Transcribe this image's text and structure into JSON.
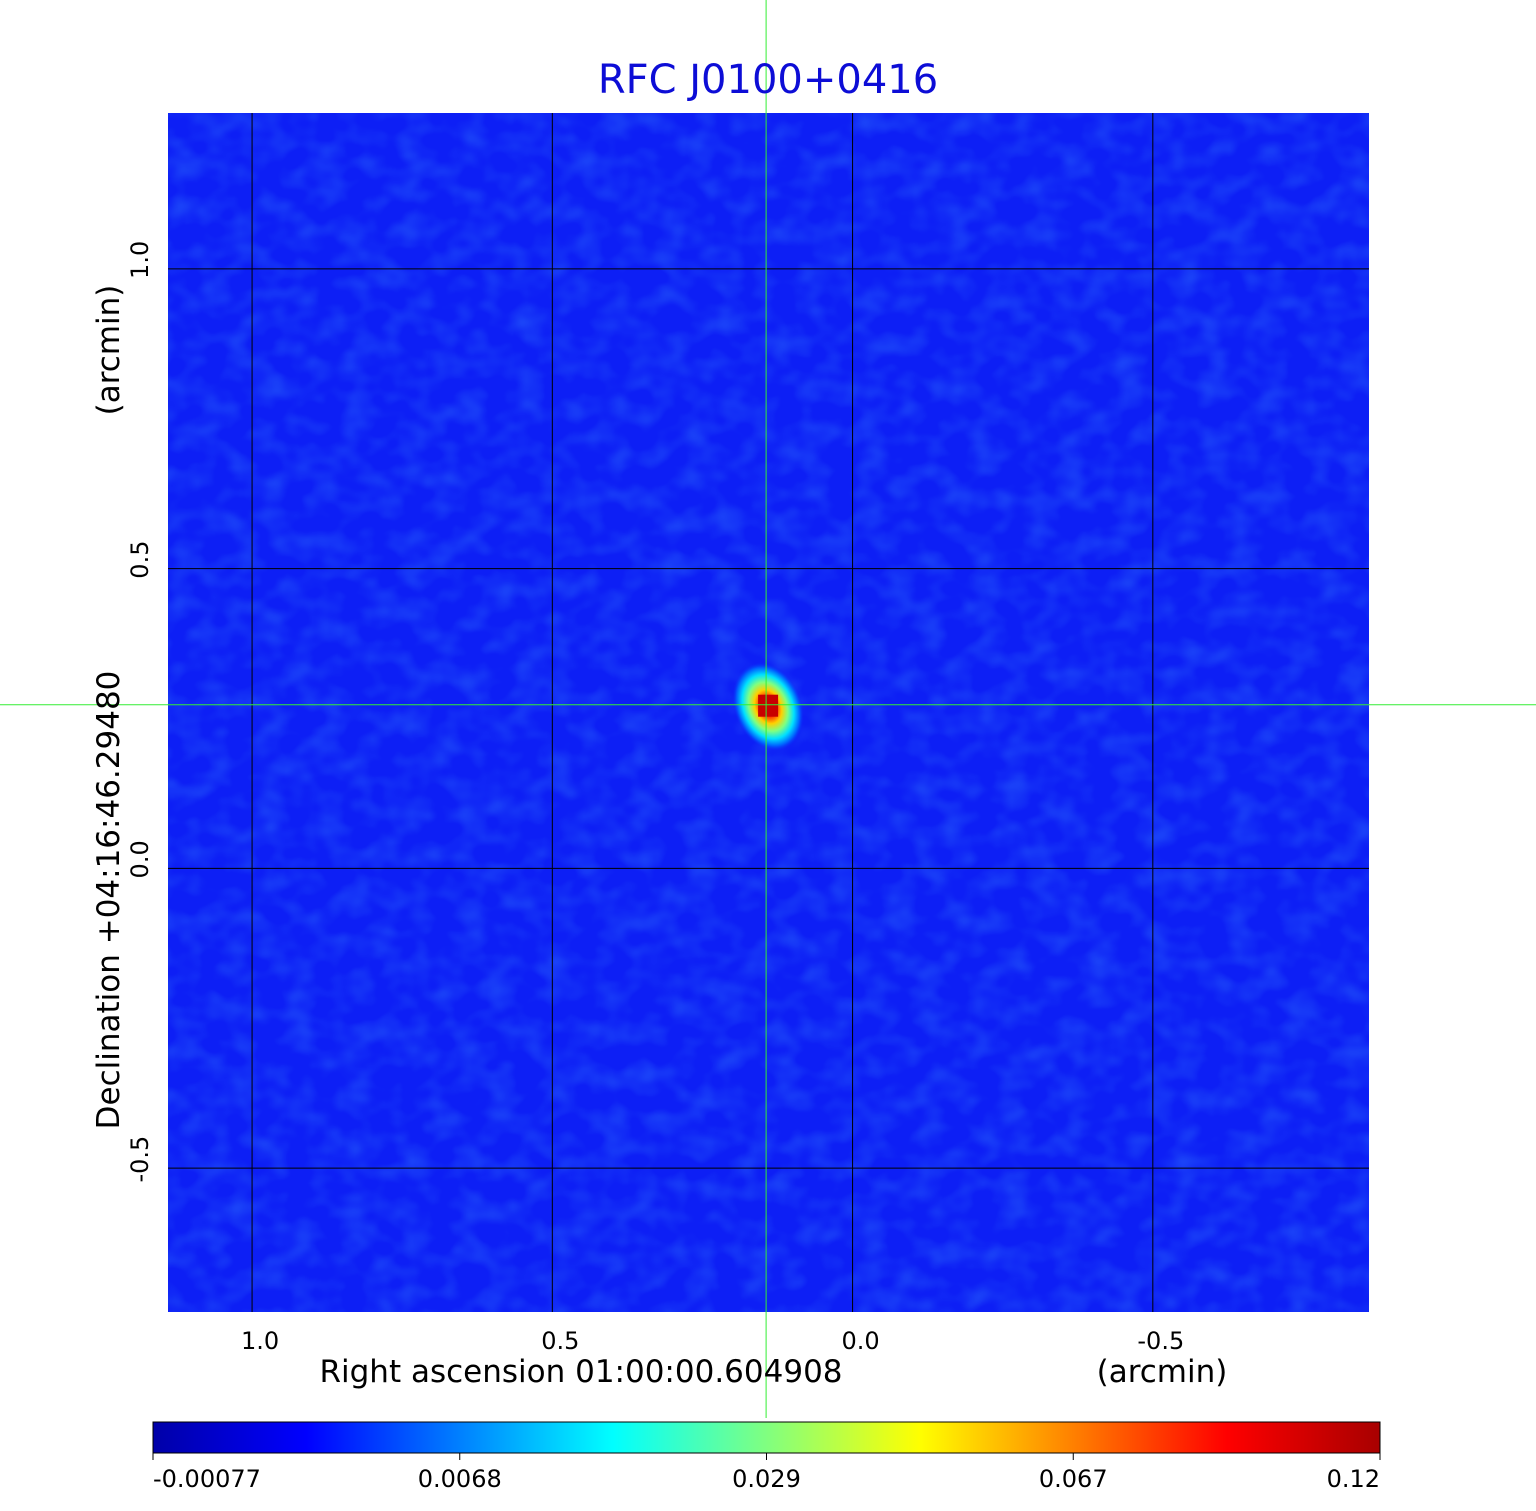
{
  "chart_data": {
    "type": "heatmap",
    "title": "RFC J0100+0416",
    "title_color": "#0d0dd6",
    "xlabel": "Right ascension  01:00:00.604908",
    "xunit": "(arcmin)",
    "ylabel": "Declination  +04:16:46.29480",
    "yunit": "(arcmin)",
    "x_ticks": [
      "1.0",
      "0.5",
      "0.0",
      "-0.5"
    ],
    "x_tick_values": [
      1.0,
      0.5,
      0.0,
      -0.5
    ],
    "y_ticks": [
      "1.0",
      "0.5",
      "0.0",
      "-0.5"
    ],
    "y_tick_values": [
      1.0,
      0.5,
      0.0,
      -0.5
    ],
    "xlim": [
      1.14,
      -0.86
    ],
    "ylim": [
      -0.74,
      1.26
    ],
    "grid": true,
    "crosshair": {
      "x": 0.144,
      "y": 0.273,
      "color": "#33ee33"
    },
    "source": {
      "x": 0.144,
      "y": 0.273,
      "peak": 0.12
    },
    "colorbar": {
      "ticks": [
        "-0.00077",
        "0.0068",
        "0.029",
        "0.067",
        "0.12"
      ],
      "colors": [
        "#0000a8",
        "#0000ff",
        "#0080ff",
        "#00ffff",
        "#80ff80",
        "#ffff00",
        "#ff8000",
        "#ff0000",
        "#a80000"
      ]
    },
    "background_color": "#0d1ff5"
  }
}
